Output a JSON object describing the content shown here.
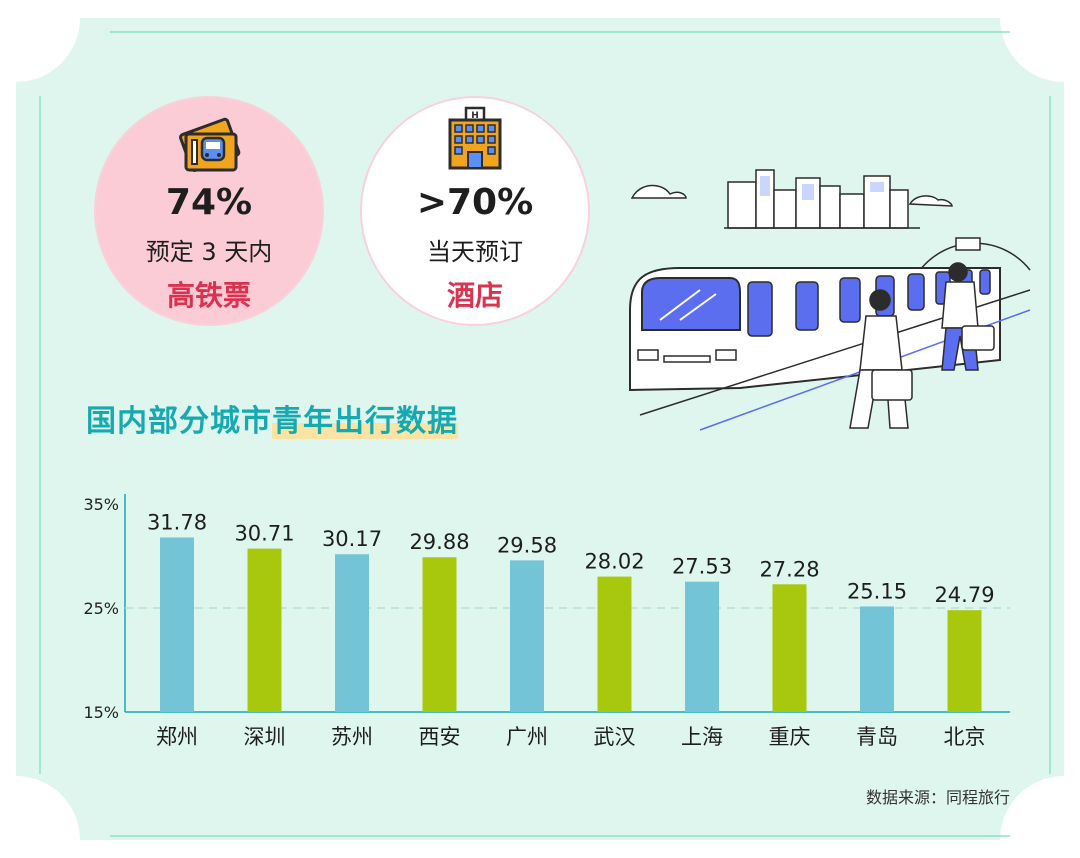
{
  "stats": [
    {
      "value": "74%",
      "desc": "预定 3 天内",
      "label": "高铁票"
    },
    {
      "value": ">70%",
      "desc": "当天预订",
      "label": "酒店"
    }
  ],
  "section_title": {
    "main": "国内部分城市",
    "highlight": "青年出行数据"
  },
  "source": "数据来源：同程旅行",
  "colors": {
    "background": "#dff6ee",
    "blue_bar": "#74c4d8",
    "green_bar": "#a7c80d",
    "title": "#17a9b0",
    "label_red": "#d9334f",
    "pink_circle": "#fcccd6"
  },
  "chart_data": {
    "type": "bar",
    "categories": [
      "郑州",
      "深圳",
      "苏州",
      "西安",
      "广州",
      "武汉",
      "上海",
      "重庆",
      "青岛",
      "北京"
    ],
    "values": [
      31.78,
      30.71,
      30.17,
      29.88,
      29.58,
      28.02,
      27.53,
      27.28,
      25.15,
      24.79
    ],
    "value_labels": [
      "31.78",
      "30.71",
      "30.17",
      "29.88",
      "29.58",
      "28.02",
      "27.53",
      "27.28",
      "25.15",
      "24.79"
    ],
    "bar_colors": [
      "#74c4d8",
      "#a7c80d",
      "#74c4d8",
      "#a7c80d",
      "#74c4d8",
      "#a7c80d",
      "#74c4d8",
      "#a7c80d",
      "#74c4d8",
      "#a7c80d"
    ],
    "y_ticks": [
      35,
      25,
      15
    ],
    "y_tick_labels": [
      "35%",
      "25%",
      "15%"
    ],
    "ylim": [
      15,
      35
    ],
    "reference_line": 25,
    "grid": false
  }
}
